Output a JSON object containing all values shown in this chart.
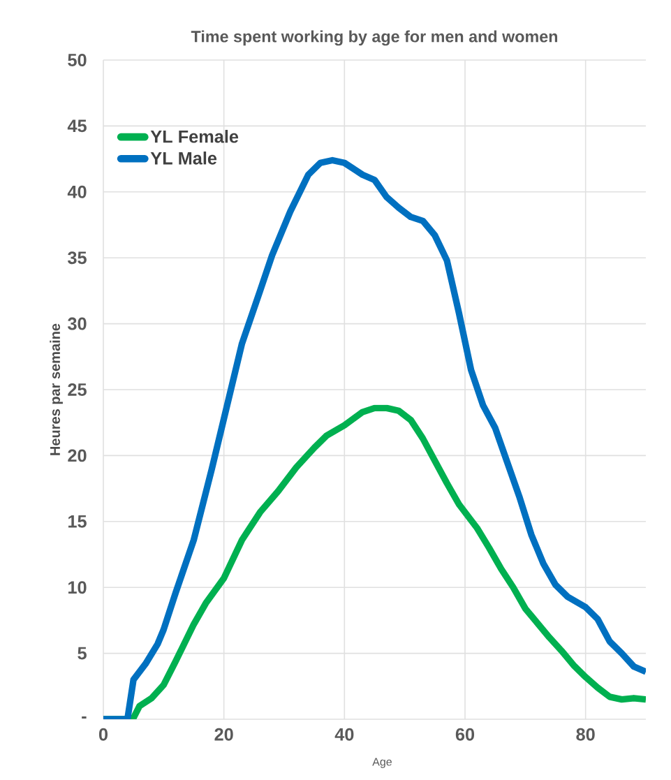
{
  "chart_data": {
    "type": "line",
    "title": "Time spent working by age for men and women",
    "xlabel": "Age",
    "ylabel": "Heures par semaine",
    "xlim": [
      0,
      90
    ],
    "ylim": [
      0,
      50
    ],
    "xticks": [
      0,
      20,
      40,
      60,
      80
    ],
    "yticks": [
      {
        "value": 0,
        "label": "-"
      },
      5,
      10,
      15,
      20,
      25,
      30,
      35,
      40,
      45,
      50
    ],
    "grid": true,
    "legend": "top left",
    "series": [
      {
        "name": "YL Female",
        "color": "#00b050",
        "x": [
          0,
          4,
          5,
          6,
          8,
          10,
          12,
          15,
          17,
          20,
          23,
          26,
          29,
          32,
          35,
          37,
          40,
          43,
          45,
          47,
          49,
          51,
          53,
          55,
          57,
          59,
          62,
          64,
          66,
          68,
          70,
          72,
          74,
          76,
          78,
          80,
          82,
          84,
          86,
          88,
          90
        ],
        "values": [
          0,
          0,
          0.1,
          1.0,
          1.6,
          2.6,
          4.4,
          7.2,
          8.8,
          10.7,
          13.6,
          15.7,
          17.3,
          19.1,
          20.6,
          21.5,
          22.3,
          23.3,
          23.6,
          23.6,
          23.4,
          22.7,
          21.3,
          19.6,
          17.9,
          16.3,
          14.5,
          13,
          11.4,
          10,
          8.4,
          7.3,
          6.2,
          5.2,
          4.1,
          3.2,
          2.4,
          1.7,
          1.5,
          1.6,
          1.5
        ]
      },
      {
        "name": "YL Male",
        "color": "#0070c0",
        "x": [
          0,
          4,
          5,
          7,
          9,
          10,
          12,
          15,
          18,
          20,
          23,
          26,
          28,
          31,
          34,
          36,
          38,
          40,
          43,
          45,
          47,
          49,
          51,
          53,
          55,
          57,
          59,
          61,
          63,
          65,
          67,
          69,
          71,
          73,
          75,
          77,
          80,
          82,
          84,
          86,
          88,
          90
        ],
        "values": [
          0,
          0,
          3,
          4.2,
          5.7,
          6.8,
          9.6,
          13.6,
          19,
          22.8,
          28.5,
          32.5,
          35.2,
          38.5,
          41.3,
          42.2,
          42.4,
          42.2,
          41.3,
          40.9,
          39.6,
          38.8,
          38.1,
          37.8,
          36.7,
          34.8,
          30.8,
          26.5,
          23.8,
          22.1,
          19.5,
          16.9,
          14,
          11.8,
          10.2,
          9.3,
          8.5,
          7.6,
          5.9,
          5,
          4,
          3.6
        ]
      }
    ]
  }
}
